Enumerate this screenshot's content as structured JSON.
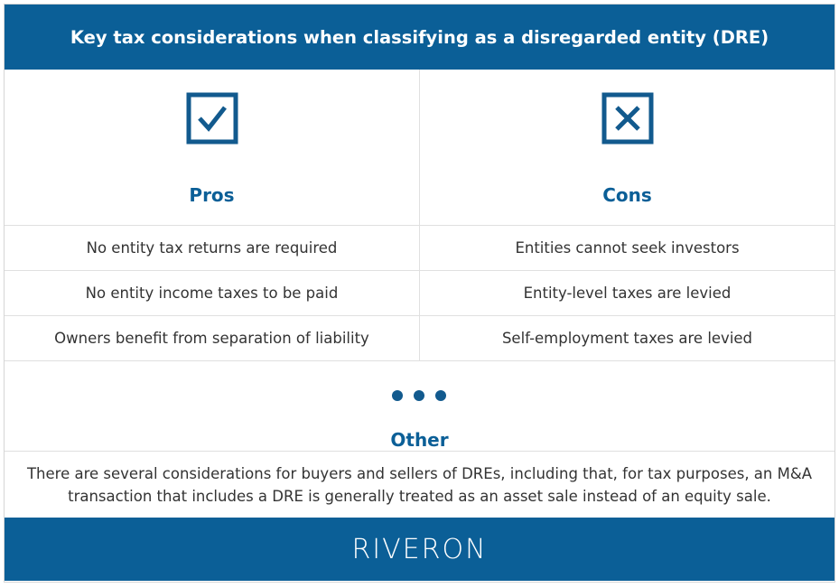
{
  "header": {
    "title": "Key tax considerations when classifying as a disregarded entity (DRE)"
  },
  "pros": {
    "title": "Pros",
    "items": [
      "No entity tax returns are required",
      "No entity income taxes to be paid",
      "Owners benefit from separation of liability"
    ]
  },
  "cons": {
    "title": "Cons",
    "items": [
      "Entities cannot seek investors",
      "Entity-level taxes are levied",
      "Self-employment taxes are levied"
    ]
  },
  "other": {
    "title": "Other",
    "text": "There are several considerations for buyers and sellers of DREs, including that, for tax purposes, an M&A transaction that includes a DRE is generally treated as an asset sale instead of an equity sale."
  },
  "footer": {
    "logo": "RIVERON"
  }
}
